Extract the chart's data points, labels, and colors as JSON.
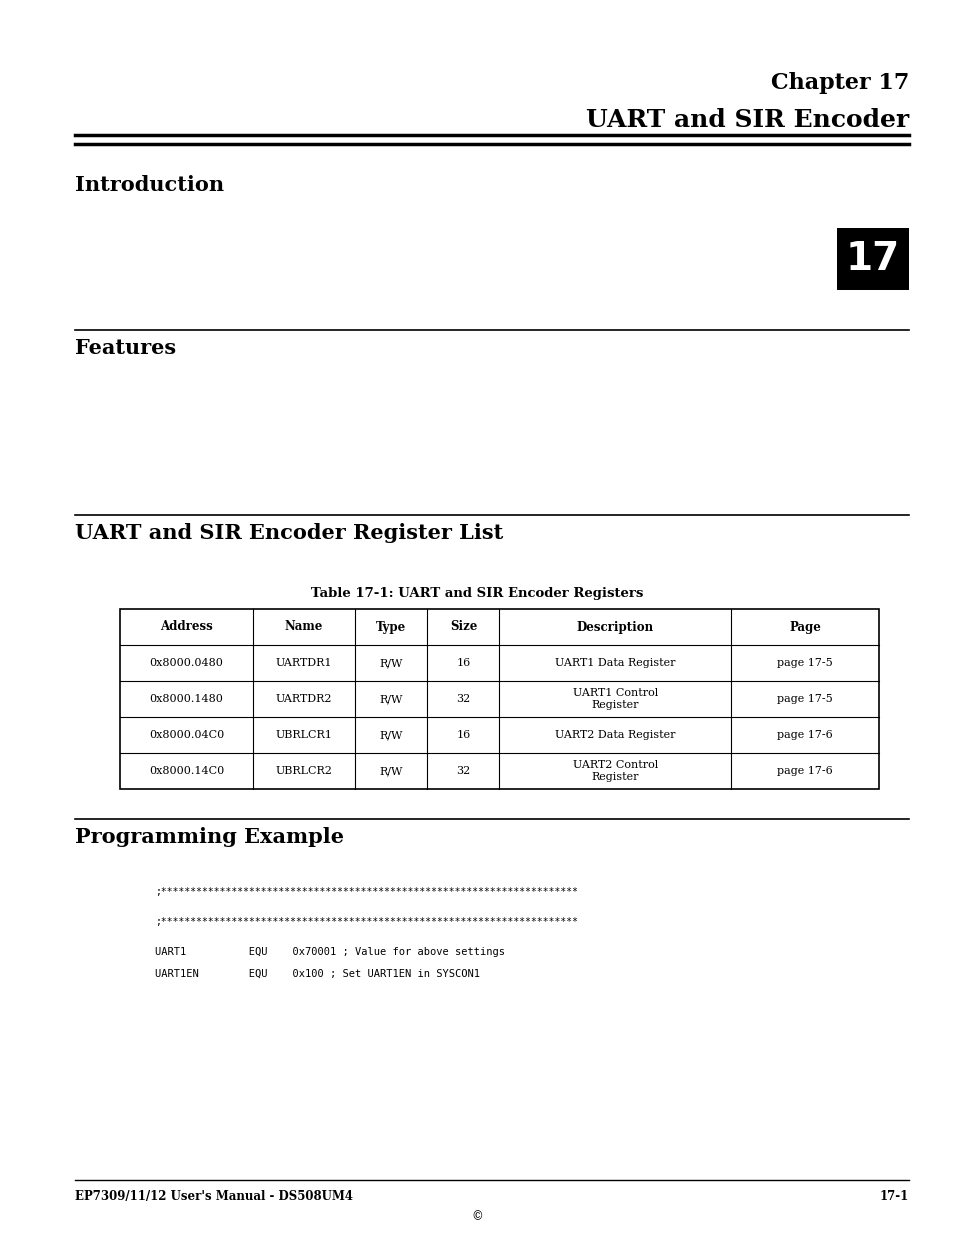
{
  "page_width": 9.54,
  "page_height": 12.35,
  "bg_color": "#ffffff",
  "chapter_label": "Chapter 17",
  "chapter_title": "UART and SIR Encoder",
  "intro_heading": "Introduction",
  "features_heading": "Features",
  "register_list_heading": "UART and SIR Encoder Register List",
  "table_title": "Table 17-1: UART and SIR Encoder Registers",
  "table_headers": [
    "Address",
    "Name",
    "Type",
    "Size",
    "Description",
    "Page"
  ],
  "table_rows": [
    [
      "0x8000.0480",
      "UARTDR1",
      "R/W",
      "16",
      "UART1 Data Register",
      "page 17-5"
    ],
    [
      "0x8000.1480",
      "UARTDR2",
      "R/W",
      "32",
      "UART1 Control\nRegister",
      "page 17-5"
    ],
    [
      "0x8000.04C0",
      "UBRLCR1",
      "R/W",
      "16",
      "UART2 Data Register",
      "page 17-6"
    ],
    [
      "0x8000.14C0",
      "UBRLCR2",
      "R/W",
      "32",
      "UART2 Control\nRegister",
      "page 17-6"
    ]
  ],
  "programming_heading": "Programming Example",
  "code_line1": ";***********************************************************************",
  "code_line2": ";***********************************************************************",
  "code_line3": "UART1          EQU    0x70001 ; Value for above settings",
  "code_line4": "UART1EN        EQU    0x100 ; Set UART1EN in SYSCON1",
  "footer_left": "EP7309/11/12 User's Manual - DS508UM4",
  "footer_right": "17-1",
  "footer_copyright": "©",
  "tab_number": "17",
  "tab_bg": "#000000",
  "tab_fg": "#ffffff"
}
